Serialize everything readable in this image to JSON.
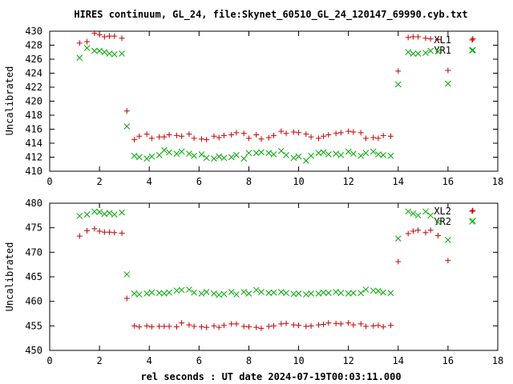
{
  "chart_data": [
    {
      "type": "scatter",
      "title": "HIRES continuum, GL_24, file:Skynet_60510_GL_24_120147_69990.cyb.txt",
      "xlabel": "",
      "ylabel": "Uncalibrated",
      "xlim": [
        0,
        18
      ],
      "ylim": [
        410,
        430
      ],
      "xticks": [
        0,
        2,
        4,
        6,
        8,
        10,
        12,
        14,
        16,
        18
      ],
      "yticks": [
        410,
        412,
        414,
        416,
        418,
        420,
        422,
        424,
        426,
        428,
        430
      ],
      "grid": false,
      "legend": "top-right",
      "series": [
        {
          "name": "XL1",
          "marker": "plus",
          "color": "#cc0000",
          "points": [
            [
              1.2,
              428.3
            ],
            [
              1.5,
              428.5
            ],
            [
              1.8,
              429.7
            ],
            [
              2.0,
              429.5
            ],
            [
              2.2,
              429.2
            ],
            [
              2.4,
              429.3
            ],
            [
              2.6,
              429.3
            ],
            [
              2.9,
              429.0
            ],
            [
              3.1,
              418.6
            ],
            [
              3.4,
              414.5
            ],
            [
              3.6,
              415.0
            ],
            [
              3.9,
              415.3
            ],
            [
              4.1,
              414.7
            ],
            [
              4.4,
              414.9
            ],
            [
              4.6,
              414.9
            ],
            [
              4.8,
              415.2
            ],
            [
              5.1,
              415.1
            ],
            [
              5.3,
              415.0
            ],
            [
              5.6,
              415.3
            ],
            [
              5.8,
              414.7
            ],
            [
              6.1,
              414.6
            ],
            [
              6.3,
              414.5
            ],
            [
              6.6,
              415.0
            ],
            [
              6.8,
              414.8
            ],
            [
              7.0,
              415.1
            ],
            [
              7.3,
              415.2
            ],
            [
              7.5,
              415.5
            ],
            [
              7.8,
              415.4
            ],
            [
              8.0,
              414.7
            ],
            [
              8.3,
              415.2
            ],
            [
              8.5,
              414.6
            ],
            [
              8.8,
              414.8
            ],
            [
              9.0,
              415.1
            ],
            [
              9.3,
              415.7
            ],
            [
              9.5,
              415.4
            ],
            [
              9.8,
              415.6
            ],
            [
              10.0,
              415.5
            ],
            [
              10.3,
              415.3
            ],
            [
              10.5,
              414.9
            ],
            [
              10.8,
              414.7
            ],
            [
              11.0,
              415.0
            ],
            [
              11.2,
              415.2
            ],
            [
              11.5,
              415.4
            ],
            [
              11.7,
              415.5
            ],
            [
              12.0,
              415.7
            ],
            [
              12.2,
              415.6
            ],
            [
              12.5,
              415.5
            ],
            [
              12.7,
              414.7
            ],
            [
              13.0,
              414.8
            ],
            [
              13.2,
              414.7
            ],
            [
              13.4,
              415.1
            ],
            [
              13.7,
              415.0
            ],
            [
              14.0,
              424.3
            ],
            [
              14.4,
              429.1
            ],
            [
              14.6,
              429.2
            ],
            [
              14.8,
              429.2
            ],
            [
              15.1,
              429.0
            ],
            [
              15.3,
              428.9
            ],
            [
              15.6,
              428.8
            ],
            [
              16.0,
              424.4
            ],
            [
              17.0,
              428.9
            ]
          ]
        },
        {
          "name": "YR1",
          "marker": "cross",
          "color": "#00aa00",
          "points": [
            [
              1.2,
              426.2
            ],
            [
              1.5,
              427.6
            ],
            [
              1.8,
              427.2
            ],
            [
              2.0,
              427.2
            ],
            [
              2.2,
              427.0
            ],
            [
              2.4,
              426.8
            ],
            [
              2.6,
              426.7
            ],
            [
              2.9,
              426.8
            ],
            [
              3.1,
              416.4
            ],
            [
              3.4,
              412.2
            ],
            [
              3.6,
              412.0
            ],
            [
              3.9,
              411.8
            ],
            [
              4.1,
              412.1
            ],
            [
              4.4,
              412.3
            ],
            [
              4.6,
              413.0
            ],
            [
              4.8,
              412.7
            ],
            [
              5.1,
              412.5
            ],
            [
              5.3,
              412.8
            ],
            [
              5.6,
              412.5
            ],
            [
              5.8,
              412.2
            ],
            [
              6.1,
              412.4
            ],
            [
              6.3,
              411.9
            ],
            [
              6.6,
              411.8
            ],
            [
              6.8,
              412.1
            ],
            [
              7.0,
              411.9
            ],
            [
              7.3,
              412.0
            ],
            [
              7.5,
              412.3
            ],
            [
              7.8,
              411.8
            ],
            [
              8.0,
              412.6
            ],
            [
              8.3,
              412.6
            ],
            [
              8.5,
              412.7
            ],
            [
              8.8,
              412.6
            ],
            [
              9.0,
              412.4
            ],
            [
              9.3,
              412.9
            ],
            [
              9.5,
              412.3
            ],
            [
              9.8,
              411.9
            ],
            [
              10.0,
              412.1
            ],
            [
              10.3,
              411.5
            ],
            [
              10.5,
              412.2
            ],
            [
              10.8,
              412.6
            ],
            [
              11.0,
              412.7
            ],
            [
              11.2,
              412.4
            ],
            [
              11.5,
              412.5
            ],
            [
              11.7,
              412.3
            ],
            [
              12.0,
              412.8
            ],
            [
              12.2,
              412.5
            ],
            [
              12.5,
              412.2
            ],
            [
              12.7,
              412.6
            ],
            [
              13.0,
              412.8
            ],
            [
              13.2,
              412.4
            ],
            [
              13.4,
              412.3
            ],
            [
              13.7,
              412.2
            ],
            [
              14.0,
              422.4
            ],
            [
              14.4,
              427.0
            ],
            [
              14.6,
              426.8
            ],
            [
              14.8,
              426.8
            ],
            [
              15.1,
              426.9
            ],
            [
              15.3,
              427.2
            ],
            [
              15.6,
              427.1
            ],
            [
              16.0,
              422.5
            ],
            [
              17.0,
              427.3
            ]
          ]
        }
      ]
    },
    {
      "type": "scatter",
      "title": "",
      "xlabel": "rel seconds : UT date 2024-07-19T00:03:11.000",
      "ylabel": "Uncalibrated",
      "xlim": [
        0,
        18
      ],
      "ylim": [
        450,
        480
      ],
      "xticks": [
        0,
        2,
        4,
        6,
        8,
        10,
        12,
        14,
        16,
        18
      ],
      "yticks": [
        450,
        455,
        460,
        465,
        470,
        475,
        480
      ],
      "grid": false,
      "legend": "top-right",
      "series": [
        {
          "name": "XL2",
          "marker": "plus",
          "color": "#cc0000",
          "points": [
            [
              1.2,
              473.3
            ],
            [
              1.5,
              474.4
            ],
            [
              1.8,
              474.8
            ],
            [
              2.0,
              474.3
            ],
            [
              2.2,
              474.1
            ],
            [
              2.4,
              474.1
            ],
            [
              2.6,
              474.0
            ],
            [
              2.9,
              473.9
            ],
            [
              3.1,
              460.6
            ],
            [
              3.4,
              455.0
            ],
            [
              3.6,
              454.8
            ],
            [
              3.9,
              455.0
            ],
            [
              4.1,
              454.8
            ],
            [
              4.4,
              454.9
            ],
            [
              4.6,
              454.9
            ],
            [
              4.8,
              454.9
            ],
            [
              5.1,
              454.8
            ],
            [
              5.3,
              455.6
            ],
            [
              5.6,
              455.2
            ],
            [
              5.8,
              454.9
            ],
            [
              6.1,
              454.8
            ],
            [
              6.3,
              454.7
            ],
            [
              6.6,
              455.0
            ],
            [
              6.8,
              454.7
            ],
            [
              7.0,
              455.1
            ],
            [
              7.3,
              455.4
            ],
            [
              7.5,
              455.4
            ],
            [
              7.8,
              454.9
            ],
            [
              8.0,
              454.8
            ],
            [
              8.3,
              454.7
            ],
            [
              8.5,
              454.5
            ],
            [
              8.8,
              454.9
            ],
            [
              9.0,
              455.0
            ],
            [
              9.3,
              455.4
            ],
            [
              9.5,
              455.5
            ],
            [
              9.8,
              455.2
            ],
            [
              10.0,
              455.1
            ],
            [
              10.3,
              454.9
            ],
            [
              10.5,
              455.0
            ],
            [
              10.8,
              455.2
            ],
            [
              11.0,
              455.3
            ],
            [
              11.2,
              455.6
            ],
            [
              11.5,
              455.5
            ],
            [
              11.7,
              455.4
            ],
            [
              12.0,
              455.6
            ],
            [
              12.2,
              455.2
            ],
            [
              12.5,
              455.4
            ],
            [
              12.7,
              454.9
            ],
            [
              13.0,
              455.0
            ],
            [
              13.2,
              455.1
            ],
            [
              13.4,
              454.8
            ],
            [
              13.7,
              455.1
            ],
            [
              14.0,
              468.1
            ],
            [
              14.4,
              473.8
            ],
            [
              14.6,
              474.3
            ],
            [
              14.8,
              474.5
            ],
            [
              15.1,
              474.0
            ],
            [
              15.3,
              474.5
            ],
            [
              15.6,
              473.4
            ],
            [
              16.0,
              468.3
            ],
            [
              17.0,
              478.5
            ]
          ]
        },
        {
          "name": "YR2",
          "marker": "cross",
          "color": "#00aa00",
          "points": [
            [
              1.2,
              477.4
            ],
            [
              1.5,
              477.7
            ],
            [
              1.8,
              478.3
            ],
            [
              2.0,
              478.2
            ],
            [
              2.2,
              477.8
            ],
            [
              2.4,
              478.0
            ],
            [
              2.6,
              477.7
            ],
            [
              2.9,
              478.1
            ],
            [
              3.1,
              465.5
            ],
            [
              3.4,
              461.6
            ],
            [
              3.6,
              461.4
            ],
            [
              3.9,
              461.6
            ],
            [
              4.1,
              461.8
            ],
            [
              4.4,
              461.7
            ],
            [
              4.6,
              461.6
            ],
            [
              4.8,
              461.8
            ],
            [
              5.1,
              462.2
            ],
            [
              5.3,
              462.3
            ],
            [
              5.6,
              462.4
            ],
            [
              5.8,
              461.8
            ],
            [
              6.1,
              461.6
            ],
            [
              6.3,
              461.9
            ],
            [
              6.6,
              461.6
            ],
            [
              6.8,
              461.3
            ],
            [
              7.0,
              461.5
            ],
            [
              7.3,
              461.9
            ],
            [
              7.5,
              461.4
            ],
            [
              7.8,
              461.9
            ],
            [
              8.0,
              461.6
            ],
            [
              8.3,
              462.3
            ],
            [
              8.5,
              461.9
            ],
            [
              8.8,
              461.7
            ],
            [
              9.0,
              461.8
            ],
            [
              9.3,
              461.9
            ],
            [
              9.5,
              461.7
            ],
            [
              9.8,
              461.5
            ],
            [
              10.0,
              461.6
            ],
            [
              10.3,
              461.4
            ],
            [
              10.5,
              461.6
            ],
            [
              10.8,
              461.6
            ],
            [
              11.0,
              461.8
            ],
            [
              11.2,
              461.7
            ],
            [
              11.5,
              461.9
            ],
            [
              11.7,
              461.7
            ],
            [
              12.0,
              461.6
            ],
            [
              12.2,
              461.7
            ],
            [
              12.5,
              461.7
            ],
            [
              12.7,
              462.4
            ],
            [
              13.0,
              462.2
            ],
            [
              13.2,
              462.1
            ],
            [
              13.4,
              461.8
            ],
            [
              13.7,
              461.7
            ],
            [
              14.0,
              472.8
            ],
            [
              14.4,
              478.3
            ],
            [
              14.6,
              477.9
            ],
            [
              14.8,
              477.5
            ],
            [
              15.1,
              478.3
            ],
            [
              15.3,
              477.5
            ],
            [
              15.6,
              476.1
            ],
            [
              16.0,
              472.5
            ],
            [
              17.0,
              476.4
            ]
          ]
        }
      ]
    }
  ]
}
